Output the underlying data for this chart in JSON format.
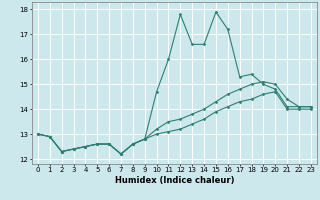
{
  "xlabel": "Humidex (Indice chaleur)",
  "ylabel": "",
  "bg_color": "#cce8ec",
  "grid_color": "#ffffff",
  "line_color": "#2d7f72",
  "xlim": [
    -0.5,
    23.5
  ],
  "ylim": [
    11.8,
    18.3
  ],
  "yticks": [
    12,
    13,
    14,
    15,
    16,
    17,
    18
  ],
  "xticks": [
    0,
    1,
    2,
    3,
    4,
    5,
    6,
    7,
    8,
    9,
    10,
    11,
    12,
    13,
    14,
    15,
    16,
    17,
    18,
    19,
    20,
    21,
    22,
    23
  ],
  "series": [
    {
      "x": [
        0,
        1,
        2,
        3,
        4,
        5,
        6,
        7,
        8,
        9,
        10,
        11,
        12,
        13,
        14,
        15,
        16,
        17,
        18,
        19,
        20,
        21,
        22,
        23
      ],
      "y": [
        13.0,
        12.9,
        12.3,
        12.4,
        12.5,
        12.6,
        12.6,
        12.2,
        12.6,
        12.8,
        14.7,
        16.0,
        17.8,
        16.6,
        16.6,
        17.9,
        17.2,
        15.3,
        15.4,
        15.0,
        14.8,
        14.1,
        14.1,
        14.1
      ]
    },
    {
      "x": [
        0,
        1,
        2,
        3,
        4,
        5,
        6,
        7,
        8,
        9,
        10,
        11,
        12,
        13,
        14,
        15,
        16,
        17,
        18,
        19,
        20,
        21,
        22,
        23
      ],
      "y": [
        13.0,
        12.9,
        12.3,
        12.4,
        12.5,
        12.6,
        12.6,
        12.2,
        12.6,
        12.8,
        13.2,
        13.5,
        13.6,
        13.8,
        14.0,
        14.3,
        14.6,
        14.8,
        15.0,
        15.1,
        15.0,
        14.4,
        14.1,
        14.1
      ]
    },
    {
      "x": [
        0,
        1,
        2,
        3,
        4,
        5,
        6,
        7,
        8,
        9,
        10,
        11,
        12,
        13,
        14,
        15,
        16,
        17,
        18,
        19,
        20,
        21,
        22,
        23
      ],
      "y": [
        13.0,
        12.9,
        12.3,
        12.4,
        12.5,
        12.6,
        12.6,
        12.2,
        12.6,
        12.8,
        13.0,
        13.1,
        13.2,
        13.4,
        13.6,
        13.9,
        14.1,
        14.3,
        14.4,
        14.6,
        14.7,
        14.0,
        14.0,
        14.0
      ]
    }
  ]
}
